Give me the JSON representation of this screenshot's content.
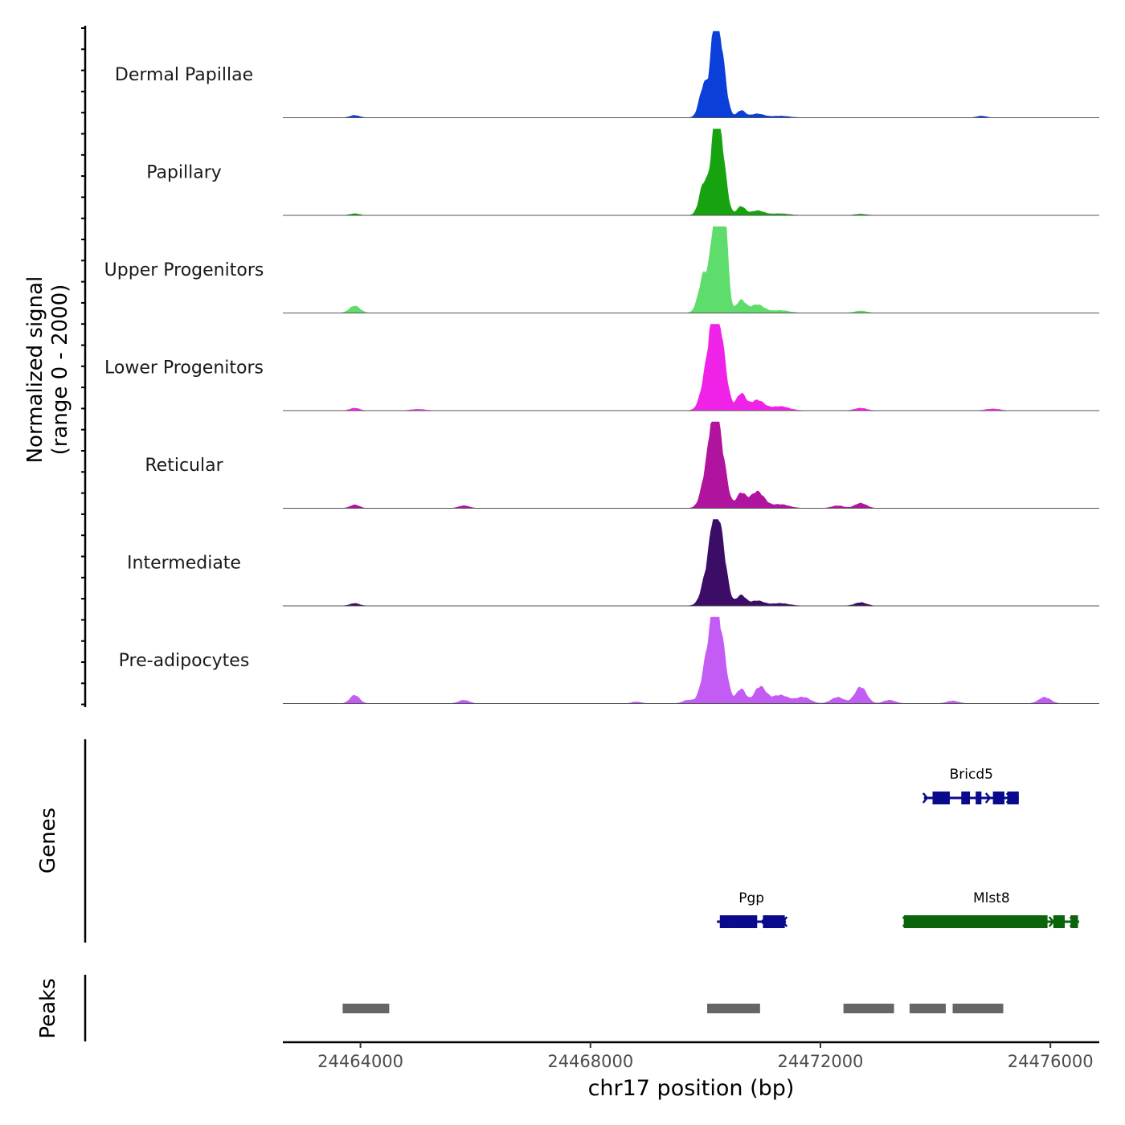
{
  "chart_data": {
    "type": "area",
    "title": "",
    "ylabel_line1": "Normalized signal",
    "ylabel_line2": "(range 0 - 2000)",
    "y_range": [
      0,
      2000
    ],
    "xlabel": "chr17 position (bp)",
    "x_range": [
      24462650,
      24476850
    ],
    "x_ticks": [
      24464000,
      24468000,
      24472000,
      24476000
    ],
    "x_tick_labels": [
      "24464000",
      "24468000",
      "24472000",
      "24476000"
    ],
    "tracks": [
      {
        "name": "Dermal Papillae",
        "color": "#0a3fd9",
        "peaks": [
          [
            24463900,
            55,
            80
          ],
          [
            24469980,
            800,
            80
          ],
          [
            24470150,
            1350,
            60
          ],
          [
            24470250,
            1750,
            90
          ],
          [
            24470620,
            170,
            70
          ],
          [
            24470900,
            90,
            120
          ],
          [
            24471300,
            40,
            150
          ],
          [
            24474800,
            40,
            80
          ]
        ]
      },
      {
        "name": "Papillary",
        "color": "#17a30f",
        "peaks": [
          [
            24463900,
            40,
            80
          ],
          [
            24469980,
            800,
            80
          ],
          [
            24470150,
            1150,
            60
          ],
          [
            24470250,
            1900,
            90
          ],
          [
            24470620,
            210,
            70
          ],
          [
            24470900,
            110,
            120
          ],
          [
            24471300,
            40,
            150
          ],
          [
            24472700,
            30,
            100
          ]
        ]
      },
      {
        "name": "Upper Progenitors",
        "color": "#5edc6c",
        "peaks": [
          [
            24463900,
            170,
            90
          ],
          [
            24469980,
            950,
            90
          ],
          [
            24470150,
            1200,
            60
          ],
          [
            24470250,
            2000,
            90
          ],
          [
            24470320,
            1600,
            60
          ],
          [
            24470620,
            300,
            80
          ],
          [
            24470900,
            200,
            120
          ],
          [
            24471300,
            60,
            150
          ],
          [
            24472700,
            50,
            100
          ]
        ]
      },
      {
        "name": "Lower Progenitors",
        "color": "#f022e8",
        "peaks": [
          [
            24463900,
            60,
            80
          ],
          [
            24465000,
            30,
            120
          ],
          [
            24469950,
            150,
            90
          ],
          [
            24470050,
            1000,
            90
          ],
          [
            24470150,
            1300,
            60
          ],
          [
            24470250,
            1800,
            100
          ],
          [
            24470620,
            400,
            80
          ],
          [
            24470900,
            250,
            120
          ],
          [
            24471300,
            100,
            150
          ],
          [
            24472700,
            60,
            100
          ],
          [
            24475000,
            40,
            120
          ]
        ]
      },
      {
        "name": "Reticular",
        "color": "#b0139e",
        "peaks": [
          [
            24463900,
            80,
            80
          ],
          [
            24465800,
            60,
            90
          ],
          [
            24469950,
            100,
            90
          ],
          [
            24470050,
            1000,
            90
          ],
          [
            24470150,
            1200,
            60
          ],
          [
            24470250,
            1550,
            100
          ],
          [
            24470620,
            350,
            80
          ],
          [
            24470900,
            400,
            120
          ],
          [
            24471300,
            90,
            150
          ],
          [
            24472300,
            60,
            100
          ],
          [
            24472700,
            120,
            100
          ]
        ]
      },
      {
        "name": "Intermediate",
        "color": "#3c0d66",
        "peaks": [
          [
            24463900,
            60,
            80
          ],
          [
            24469950,
            100,
            90
          ],
          [
            24470050,
            800,
            90
          ],
          [
            24470150,
            900,
            60
          ],
          [
            24470250,
            1750,
            100
          ],
          [
            24470620,
            250,
            80
          ],
          [
            24470900,
            120,
            120
          ],
          [
            24471300,
            60,
            150
          ],
          [
            24472700,
            80,
            100
          ]
        ]
      },
      {
        "name": "Pre-adipocytes",
        "color": "#c35cf5",
        "peaks": [
          [
            24463900,
            200,
            80
          ],
          [
            24465800,
            80,
            90
          ],
          [
            24468800,
            40,
            80
          ],
          [
            24469700,
            80,
            90
          ],
          [
            24469950,
            150,
            90
          ],
          [
            24470050,
            1050,
            90
          ],
          [
            24470150,
            950,
            60
          ],
          [
            24470250,
            1700,
            100
          ],
          [
            24470620,
            350,
            80
          ],
          [
            24470950,
            400,
            100
          ],
          [
            24471300,
            200,
            150
          ],
          [
            24471700,
            150,
            120
          ],
          [
            24472300,
            150,
            110
          ],
          [
            24472700,
            400,
            100
          ],
          [
            24473200,
            80,
            100
          ],
          [
            24474300,
            60,
            100
          ],
          [
            24475900,
            150,
            100
          ]
        ]
      }
    ],
    "genes": [
      {
        "name": "Bricd5",
        "color": "#0a0a8c",
        "row": 0,
        "strand": "+",
        "start": 24473800,
        "end": 24475450,
        "exons": [
          [
            24473950,
            24474250
          ],
          [
            24474450,
            24474600
          ],
          [
            24474700,
            24474800
          ],
          [
            24475000,
            24475200
          ],
          [
            24475250,
            24475450
          ]
        ]
      },
      {
        "name": "Pgp",
        "color": "#0a0a8c",
        "row": 1,
        "strand": "-",
        "start": 24470200,
        "end": 24471400,
        "exons": [
          [
            24470250,
            24470900
          ],
          [
            24471000,
            24471380
          ]
        ]
      },
      {
        "name": "Mlst8",
        "color": "#0b640b",
        "row": 1,
        "strand": "+",
        "start": 24473450,
        "end": 24476500,
        "exons": [
          [
            24473450,
            24475950
          ],
          [
            24476050,
            24476250
          ],
          [
            24476350,
            24476480
          ]
        ]
      }
    ],
    "peak_regions": [
      [
        24463690,
        24464500
      ],
      [
        24470030,
        24470950
      ],
      [
        24472400,
        24473280
      ],
      [
        24473550,
        24474180
      ],
      [
        24474300,
        24475180
      ]
    ],
    "panel_titles": {
      "genes": "Genes",
      "peaks": "Peaks"
    }
  }
}
